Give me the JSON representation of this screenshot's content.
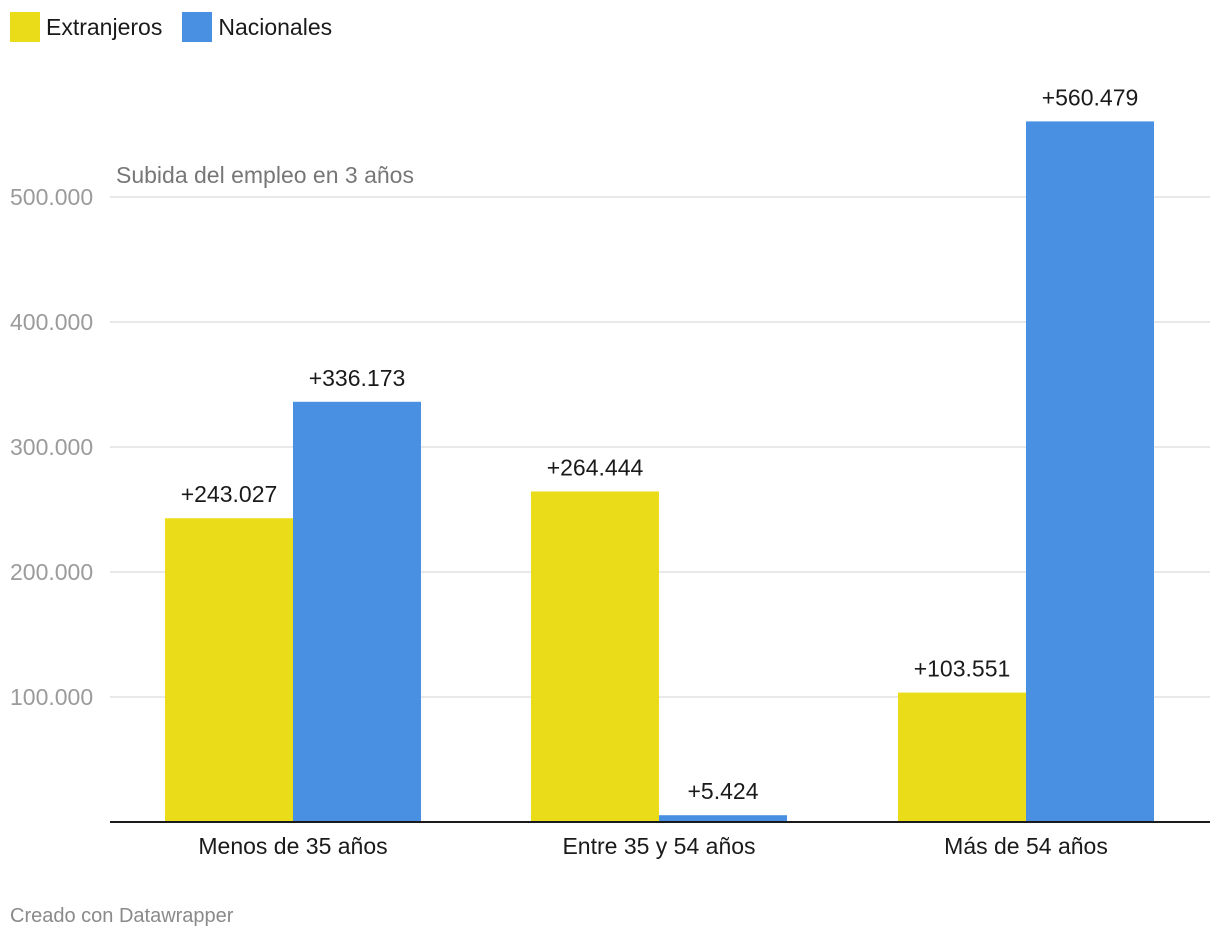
{
  "chart_data": {
    "type": "bar",
    "annotation": "Subida del empleo en 3 años",
    "categories": [
      "Menos de 35 años",
      "Entre 35 y 54 años",
      "Más de 54 años"
    ],
    "series": [
      {
        "name": "Extranjeros",
        "color": "#ebdc1a",
        "values": [
          243027,
          264444,
          103551
        ],
        "labels": [
          "+243.027",
          "+264.444",
          "+103.551"
        ]
      },
      {
        "name": "Nacionales",
        "color": "#4a90e2",
        "values": [
          336173,
          5424,
          560479
        ],
        "labels": [
          "+336.173",
          "+5.424",
          "+560.479"
        ]
      }
    ],
    "yticks": [
      100000,
      200000,
      300000,
      400000,
      500000
    ],
    "ytick_labels": [
      "100.000",
      "200.000",
      "300.000",
      "400.000",
      "500.000"
    ],
    "ylim": [
      0,
      600000
    ],
    "grid": true,
    "legend_position": "top-left"
  },
  "footer": {
    "credit": "Creado con Datawrapper"
  }
}
